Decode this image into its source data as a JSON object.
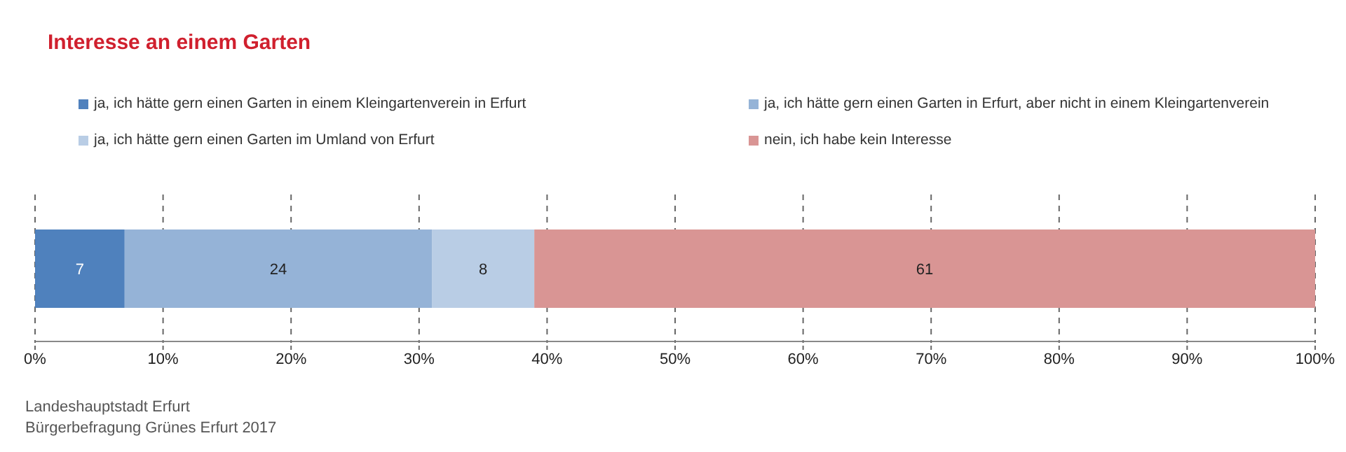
{
  "chart_data": {
    "type": "bar",
    "title": "Interesse an einem Garten",
    "orientation": "horizontal",
    "stacked": true,
    "categories": [
      null
    ],
    "series": [
      {
        "name": "ja, ich hätte gern einen Garten in einem Kleingartenverein in Erfurt",
        "color": "#4f81bd",
        "values": [
          7
        ]
      },
      {
        "name": "ja, ich hätte gern einen Garten in Erfurt, aber nicht in einem Kleingartenverein",
        "color": "#95b3d7",
        "values": [
          24
        ]
      },
      {
        "name": "ja, ich hätte gern einen Garten im Umland von Erfurt",
        "color": "#b9cde5",
        "values": [
          8
        ]
      },
      {
        "name": "nein, ich habe kein Interesse",
        "color": "#d99594",
        "values": [
          61
        ]
      }
    ],
    "xlim": [
      0,
      100
    ],
    "xticks": [
      {
        "value": 0,
        "label": "0%"
      },
      {
        "value": 10,
        "label": "10%"
      },
      {
        "value": 20,
        "label": "20%"
      },
      {
        "value": 30,
        "label": "30%"
      },
      {
        "value": 40,
        "label": "40%"
      },
      {
        "value": 50,
        "label": "50%"
      },
      {
        "value": 60,
        "label": "60%"
      },
      {
        "value": 70,
        "label": "70%"
      },
      {
        "value": 80,
        "label": "80%"
      },
      {
        "value": 90,
        "label": "90%"
      },
      {
        "value": 100,
        "label": "100%"
      }
    ],
    "grid": "x",
    "legend": "top",
    "tick_labels": "x",
    "data_labels": true,
    "annotations": [
      "Landeshauptstadt Erfurt",
      "Bürgerbefragung Grünes Erfurt 2017"
    ]
  }
}
